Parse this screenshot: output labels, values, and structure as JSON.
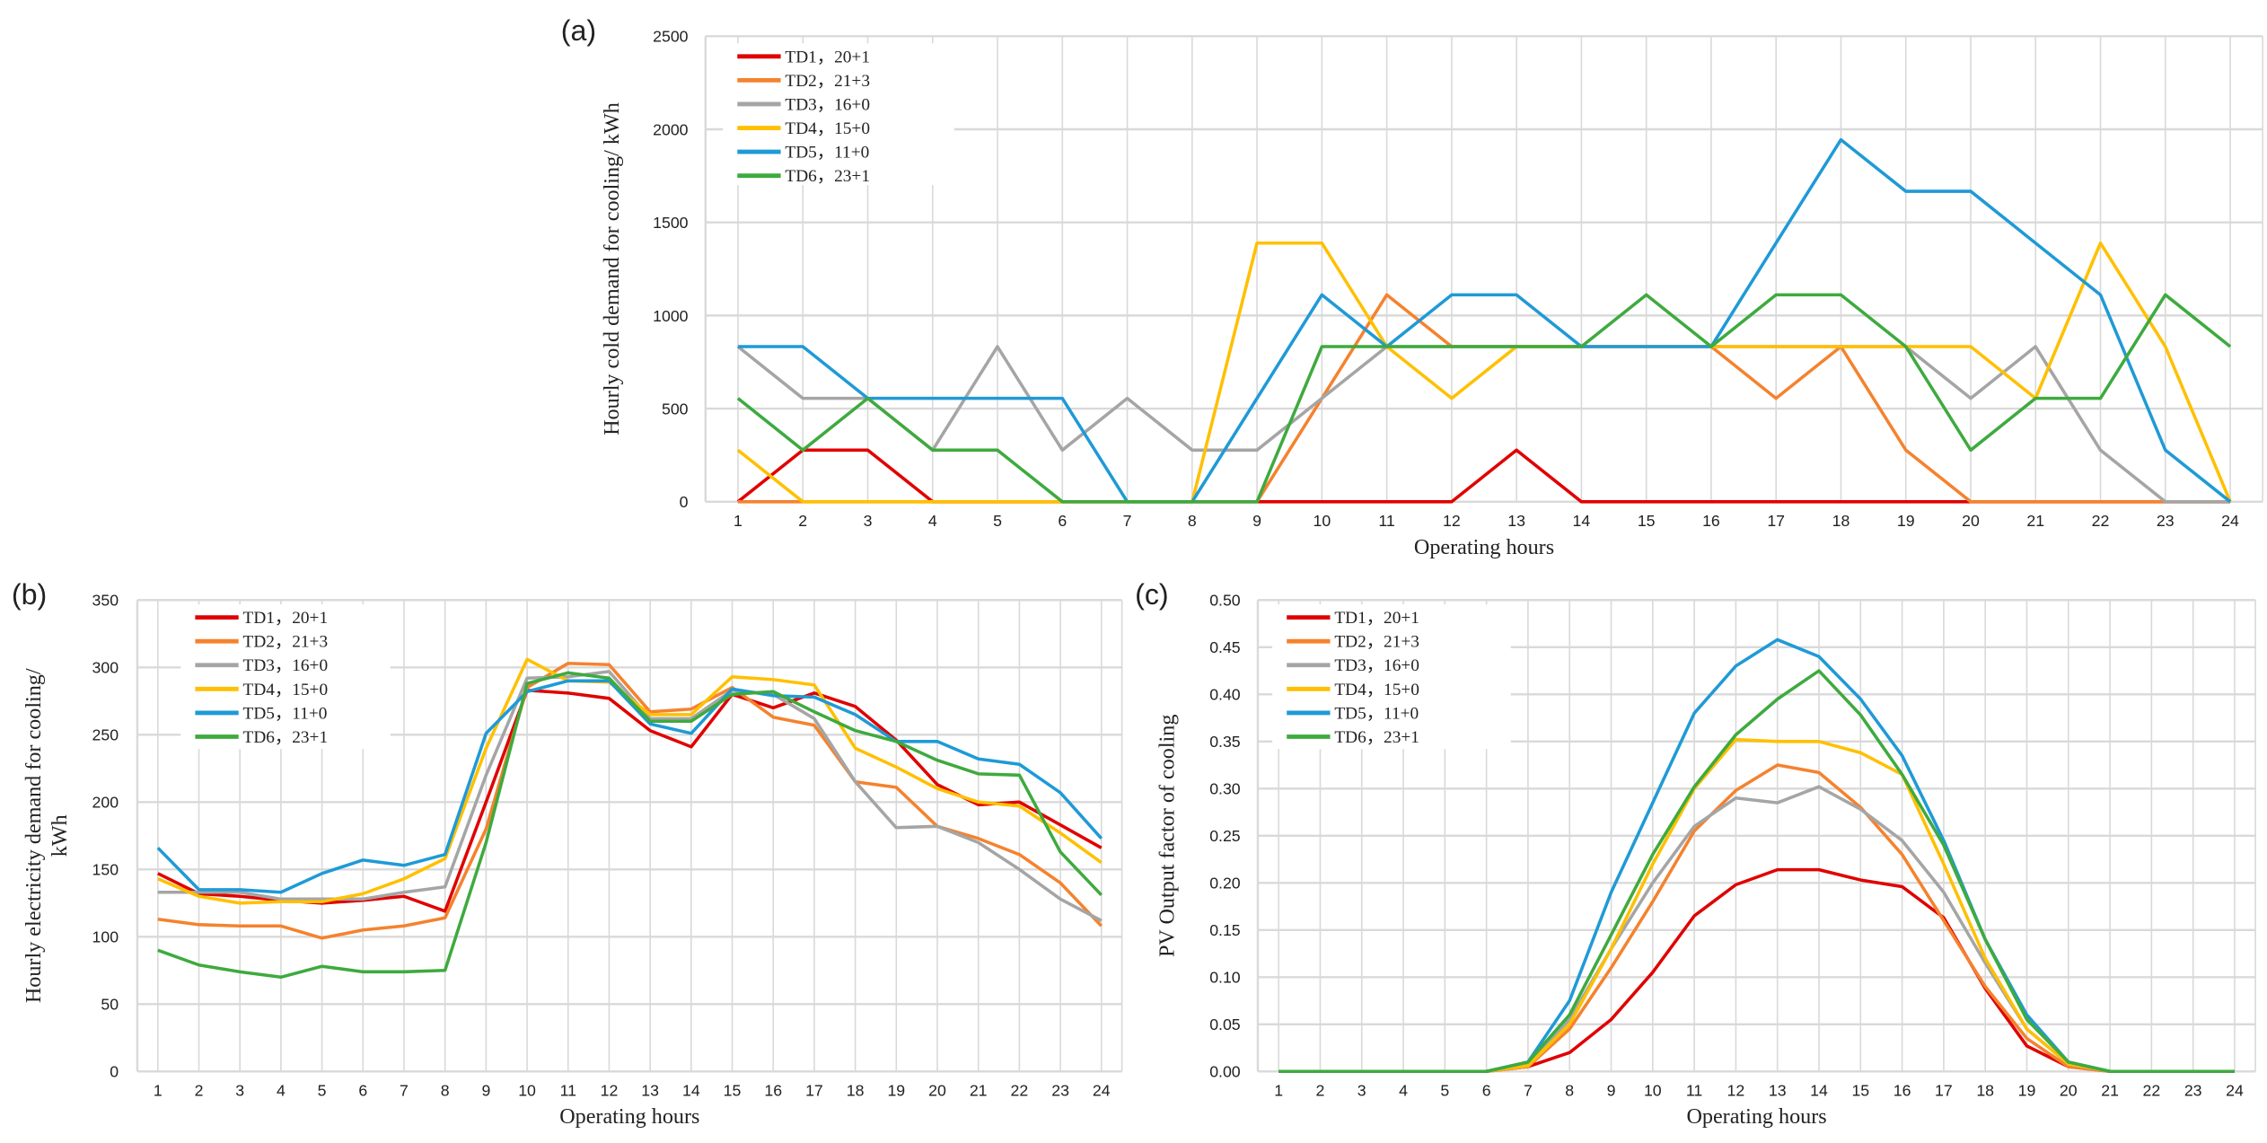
{
  "chart_data": [
    {
      "type": "line",
      "panel": "(a)",
      "xlabel": "Operating hours",
      "ylabel": [
        "Hourly cold demand for cooling/ kWh"
      ],
      "ylim": [
        0,
        2500
      ],
      "ystep": 500,
      "ydecimals": 0,
      "grid": true,
      "legend_position": "top-left",
      "x": [
        1,
        2,
        3,
        4,
        5,
        6,
        7,
        8,
        9,
        10,
        11,
        12,
        13,
        14,
        15,
        16,
        17,
        18,
        19,
        20,
        21,
        22,
        23,
        24
      ],
      "series": [
        {
          "name": "TD1，20+1",
          "color": "#e00000",
          "values": [
            0,
            277,
            277,
            0,
            0,
            0,
            0,
            0,
            0,
            0,
            0,
            0,
            277,
            0,
            0,
            0,
            0,
            0,
            0,
            0,
            0,
            0,
            0,
            0
          ]
        },
        {
          "name": "TD2，21+3",
          "color": "#f5822e",
          "values": [
            0,
            0,
            0,
            0,
            0,
            0,
            0,
            0,
            0,
            555,
            1111,
            833,
            833,
            833,
            833,
            833,
            555,
            833,
            277,
            0,
            0,
            0,
            0,
            0
          ]
        },
        {
          "name": "TD3，16+0",
          "color": "#a5a5a5",
          "values": [
            833,
            555,
            555,
            277,
            833,
            277,
            555,
            277,
            277,
            555,
            833,
            833,
            833,
            833,
            833,
            833,
            833,
            833,
            833,
            555,
            833,
            277,
            0,
            0
          ]
        },
        {
          "name": "TD4，15+0",
          "color": "#ffc000",
          "values": [
            277,
            0,
            0,
            0,
            0,
            0,
            0,
            0,
            1389,
            1389,
            833,
            555,
            833,
            833,
            833,
            833,
            833,
            833,
            833,
            833,
            555,
            1389,
            833,
            0
          ]
        },
        {
          "name": "TD5，11+0",
          "color": "#1f9ad6",
          "values": [
            833,
            833,
            555,
            555,
            555,
            555,
            0,
            0,
            555,
            1111,
            833,
            1111,
            1111,
            833,
            833,
            833,
            1389,
            1944,
            1667,
            1667,
            1389,
            1111,
            277,
            0
          ]
        },
        {
          "name": "TD6，23+1",
          "color": "#3eaa3e",
          "values": [
            555,
            277,
            555,
            277,
            277,
            0,
            0,
            0,
            0,
            833,
            833,
            833,
            833,
            833,
            1111,
            833,
            1111,
            1111,
            833,
            277,
            555,
            555,
            1111,
            833
          ]
        }
      ]
    },
    {
      "type": "line",
      "panel": "(b)",
      "xlabel": "Operating hours",
      "ylabel": [
        "Hourly electricity demand for cooling/",
        "kWh"
      ],
      "ylim": [
        0,
        350
      ],
      "ystep": 50,
      "ydecimals": 0,
      "grid": true,
      "legend_position": "top-left",
      "x": [
        1,
        2,
        3,
        4,
        5,
        6,
        7,
        8,
        9,
        10,
        11,
        12,
        13,
        14,
        15,
        16,
        17,
        18,
        19,
        20,
        21,
        22,
        23,
        24
      ],
      "series": [
        {
          "name": "TD1，20+1",
          "color": "#e00000",
          "values": [
            147,
            132,
            130,
            127,
            125,
            127,
            130,
            119,
            200,
            283,
            281,
            277,
            253,
            241,
            280,
            270,
            281,
            271,
            246,
            213,
            198,
            200,
            183,
            166
          ]
        },
        {
          "name": "TD2，21+3",
          "color": "#f5822e",
          "values": [
            113,
            109,
            108,
            108,
            99,
            105,
            108,
            114,
            180,
            285,
            303,
            302,
            267,
            269,
            285,
            263,
            257,
            215,
            211,
            182,
            173,
            161,
            140,
            108
          ]
        },
        {
          "name": "TD3，16+0",
          "color": "#a5a5a5",
          "values": [
            133,
            133,
            133,
            128,
            128,
            128,
            133,
            137,
            220,
            292,
            293,
            297,
            262,
            262,
            283,
            280,
            262,
            215,
            181,
            182,
            170,
            150,
            128,
            112
          ]
        },
        {
          "name": "TD4，15+0",
          "color": "#ffc000",
          "values": [
            143,
            130,
            125,
            126,
            126,
            132,
            143,
            158,
            240,
            306,
            290,
            289,
            265,
            265,
            293,
            291,
            287,
            240,
            226,
            210,
            200,
            197,
            177,
            155
          ]
        },
        {
          "name": "TD5，11+0",
          "color": "#1f9ad6",
          "values": [
            166,
            135,
            135,
            133,
            147,
            157,
            153,
            161,
            251,
            282,
            290,
            290,
            258,
            251,
            284,
            279,
            278,
            265,
            245,
            245,
            232,
            228,
            207,
            173
          ]
        },
        {
          "name": "TD6，23+1",
          "color": "#3eaa3e",
          "values": [
            90,
            79,
            74,
            70,
            78,
            74,
            74,
            75,
            170,
            288,
            296,
            292,
            260,
            260,
            280,
            282,
            267,
            253,
            245,
            231,
            221,
            220,
            163,
            131
          ]
        }
      ]
    },
    {
      "type": "line",
      "panel": "(c)",
      "xlabel": "Operating hours",
      "ylabel": [
        "PV Output factor of cooling"
      ],
      "ylim": [
        0,
        0.5
      ],
      "ystep": 0.05,
      "ydecimals": 2,
      "grid": true,
      "legend_position": "top-left",
      "x": [
        1,
        2,
        3,
        4,
        5,
        6,
        7,
        8,
        9,
        10,
        11,
        12,
        13,
        14,
        15,
        16,
        17,
        18,
        19,
        20,
        21,
        22,
        23,
        24
      ],
      "series": [
        {
          "name": "TD1，20+1",
          "color": "#e00000",
          "values": [
            0,
            0,
            0,
            0,
            0,
            0,
            0.005,
            0.02,
            0.055,
            0.105,
            0.165,
            0.198,
            0.214,
            0.214,
            0.203,
            0.196,
            0.163,
            0.088,
            0.027,
            0.005,
            0,
            0,
            0,
            0
          ]
        },
        {
          "name": "TD2，21+3",
          "color": "#f5822e",
          "values": [
            0,
            0,
            0,
            0,
            0,
            0,
            0.005,
            0.045,
            0.11,
            0.18,
            0.255,
            0.298,
            0.325,
            0.317,
            0.28,
            0.23,
            0.16,
            0.09,
            0.035,
            0.005,
            0,
            0,
            0,
            0
          ]
        },
        {
          "name": "TD3，16+0",
          "color": "#a5a5a5",
          "values": [
            0,
            0,
            0,
            0,
            0,
            0,
            0.008,
            0.055,
            0.13,
            0.2,
            0.26,
            0.29,
            0.285,
            0.302,
            0.278,
            0.245,
            0.19,
            0.115,
            0.045,
            0.008,
            0,
            0,
            0,
            0
          ]
        },
        {
          "name": "TD4，15+0",
          "color": "#ffc000",
          "values": [
            0,
            0,
            0,
            0,
            0,
            0,
            0.006,
            0.05,
            0.13,
            0.22,
            0.3,
            0.352,
            0.35,
            0.35,
            0.338,
            0.315,
            0.22,
            0.12,
            0.045,
            0.008,
            0,
            0,
            0,
            0
          ]
        },
        {
          "name": "TD5，11+0",
          "color": "#1f9ad6",
          "values": [
            0,
            0,
            0,
            0,
            0,
            0,
            0.01,
            0.075,
            0.19,
            0.285,
            0.38,
            0.43,
            0.458,
            0.44,
            0.395,
            0.335,
            0.245,
            0.14,
            0.06,
            0.01,
            0,
            0,
            0,
            0
          ]
        },
        {
          "name": "TD6，23+1",
          "color": "#3eaa3e",
          "values": [
            0,
            0,
            0,
            0,
            0,
            0,
            0.01,
            0.06,
            0.145,
            0.23,
            0.302,
            0.357,
            0.395,
            0.425,
            0.378,
            0.315,
            0.24,
            0.14,
            0.055,
            0.01,
            0,
            0,
            0,
            0
          ]
        }
      ]
    }
  ]
}
